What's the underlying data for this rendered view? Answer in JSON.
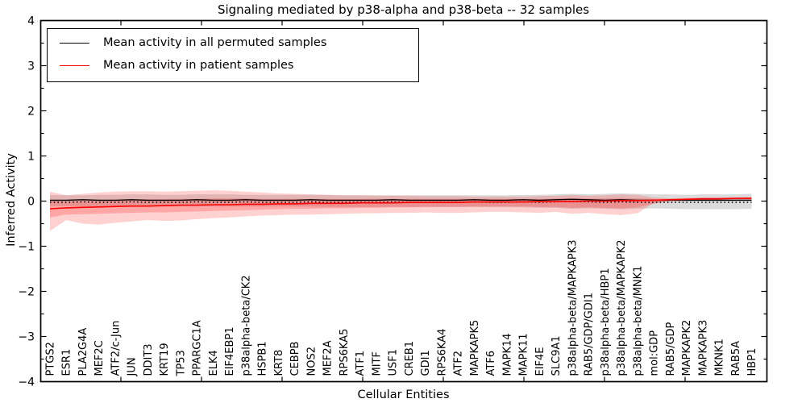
{
  "figure": {
    "title": "Signaling mediated by p38-alpha and p38-beta -- 32 samples",
    "xlabel": "Cellular Entities",
    "ylabel": "Inferred Activity"
  },
  "legend": {
    "position": "upper left",
    "items": [
      {
        "label": "Mean activity in all permuted samples",
        "color": "#000000"
      },
      {
        "label": "Mean activity in patient samples",
        "color": "#ff0000"
      }
    ]
  },
  "chart_data": {
    "type": "line",
    "title": "Signaling mediated by p38-alpha and p38-beta -- 32 samples",
    "xlabel": "Cellular Entities",
    "ylabel": "Inferred Activity",
    "ylim": [
      -4,
      4
    ],
    "grid": false,
    "legend_position": "upper left",
    "yticks": [
      4,
      3,
      2,
      1,
      0,
      -1,
      -2,
      -3,
      -4
    ],
    "ytick_labels": [
      "4",
      "3",
      "2",
      "1",
      "0",
      "−1",
      "−2",
      "−3",
      "−4"
    ],
    "categories": [
      "PTGS2",
      "ESR1",
      "PLA2G4A",
      "MEF2C",
      "ATF2/c-Jun",
      "JUN",
      "DDIT3",
      "KRT19",
      "TP53",
      "PPARGC1A",
      "ELK4",
      "EIF4EBP1",
      "p38alpha-beta/CK2",
      "HSPB1",
      "KRT8",
      "CEBPB",
      "NOS2",
      "MEF2A",
      "RPS6KA5",
      "ATF1",
      "MITF",
      "USF1",
      "CREB1",
      "GDI1",
      "RPS6KA4",
      "ATF2",
      "MAPKAPK5",
      "ATF6",
      "MAPK14",
      "MAPK11",
      "EIF4E",
      "SLC9A1",
      "p38alpha-beta/MAPKAPK3",
      "RAB5/GDP/GDI1",
      "p38alpha-beta/HBP1",
      "p38alpha-beta/MAPKAPK2",
      "p38alpha-beta/MNK1",
      "mol:GDP",
      "RAB5/GDP",
      "MAPKAPK2",
      "MAPKAPK3",
      "MKNK1",
      "RAB5A",
      "HBP1"
    ],
    "series": [
      {
        "name": "Mean activity in all permuted samples",
        "color": "#000000",
        "style": "solid-with-tick-markers",
        "values": [
          0.02,
          0.02,
          0.03,
          0.02,
          0.02,
          0.03,
          0.02,
          0.02,
          0.02,
          0.03,
          0.02,
          0.02,
          0.03,
          0.02,
          0.02,
          0.02,
          0.03,
          0.02,
          0.02,
          0.02,
          0.02,
          0.03,
          0.02,
          0.02,
          0.02,
          0.02,
          0.03,
          0.02,
          0.02,
          0.03,
          0.02,
          0.03,
          0.04,
          0.03,
          0.02,
          0.03,
          0.02,
          0.02,
          0.02,
          0.02,
          0.02,
          0.02,
          0.02,
          0.02
        ]
      },
      {
        "name": "Mean activity in patient samples",
        "color": "#ff0000",
        "style": "solid",
        "values": [
          -0.17,
          -0.15,
          -0.14,
          -0.13,
          -0.12,
          -0.11,
          -0.11,
          -0.1,
          -0.09,
          -0.09,
          -0.08,
          -0.08,
          -0.07,
          -0.07,
          -0.06,
          -0.06,
          -0.05,
          -0.05,
          -0.05,
          -0.04,
          -0.04,
          -0.04,
          -0.03,
          -0.03,
          -0.03,
          -0.03,
          -0.02,
          -0.02,
          -0.02,
          -0.02,
          -0.01,
          -0.01,
          -0.01,
          0.0,
          0.0,
          0.01,
          0.01,
          0.02,
          0.03,
          0.04,
          0.05,
          0.05,
          0.06,
          0.06
        ]
      }
    ],
    "bands": [
      {
        "name": "permuted-range",
        "color": "rgba(125,125,125,0.28)",
        "upper": [
          0.14,
          0.13,
          0.13,
          0.14,
          0.14,
          0.15,
          0.15,
          0.14,
          0.14,
          0.15,
          0.15,
          0.15,
          0.14,
          0.14,
          0.14,
          0.14,
          0.14,
          0.14,
          0.13,
          0.13,
          0.13,
          0.13,
          0.13,
          0.13,
          0.13,
          0.13,
          0.13,
          0.13,
          0.13,
          0.14,
          0.14,
          0.15,
          0.16,
          0.15,
          0.16,
          0.17,
          0.16,
          0.15,
          0.15,
          0.14,
          0.15,
          0.15,
          0.15,
          0.16
        ],
        "lower": [
          -0.11,
          -0.11,
          -0.12,
          -0.12,
          -0.12,
          -0.12,
          -0.12,
          -0.12,
          -0.12,
          -0.12,
          -0.12,
          -0.12,
          -0.12,
          -0.12,
          -0.12,
          -0.12,
          -0.12,
          -0.13,
          -0.13,
          -0.13,
          -0.13,
          -0.13,
          -0.13,
          -0.13,
          -0.13,
          -0.13,
          -0.13,
          -0.14,
          -0.14,
          -0.14,
          -0.15,
          -0.15,
          -0.17,
          -0.16,
          -0.17,
          -0.18,
          -0.17,
          -0.16,
          -0.17,
          -0.18,
          -0.18,
          -0.18,
          -0.18,
          -0.17
        ]
      },
      {
        "name": "patient-range-outer",
        "color": "rgba(255,45,45,0.22)",
        "upper": [
          0.21,
          0.13,
          0.16,
          0.19,
          0.21,
          0.22,
          0.22,
          0.21,
          0.22,
          0.23,
          0.24,
          0.23,
          0.21,
          0.19,
          0.17,
          0.16,
          0.15,
          0.14,
          0.13,
          0.13,
          0.12,
          0.12,
          0.12,
          0.11,
          0.11,
          0.11,
          0.1,
          0.1,
          0.1,
          0.1,
          0.11,
          0.12,
          0.14,
          0.12,
          0.13,
          0.15,
          0.14,
          0.08,
          0.06,
          0.07,
          0.08,
          0.08,
          0.08,
          0.09
        ],
        "lower": [
          -0.66,
          -0.42,
          -0.5,
          -0.52,
          -0.48,
          -0.45,
          -0.42,
          -0.44,
          -0.43,
          -0.4,
          -0.38,
          -0.36,
          -0.34,
          -0.32,
          -0.31,
          -0.3,
          -0.3,
          -0.29,
          -0.28,
          -0.27,
          -0.27,
          -0.26,
          -0.26,
          -0.25,
          -0.26,
          -0.26,
          -0.25,
          -0.24,
          -0.24,
          -0.25,
          -0.26,
          -0.24,
          -0.28,
          -0.26,
          -0.29,
          -0.31,
          -0.27,
          -0.04,
          0.01,
          0.02,
          0.03,
          0.03,
          0.04,
          0.04
        ]
      },
      {
        "name": "patient-range-inner",
        "color": "rgba(255,45,45,0.26)",
        "upper": [
          0.02,
          0.0,
          0.01,
          0.02,
          0.03,
          0.04,
          0.04,
          0.04,
          0.05,
          0.05,
          0.06,
          0.06,
          0.06,
          0.05,
          0.05,
          0.05,
          0.05,
          0.05,
          0.05,
          0.05,
          0.05,
          0.05,
          0.05,
          0.05,
          0.05,
          0.05,
          0.05,
          0.05,
          0.05,
          0.05,
          0.05,
          0.06,
          0.07,
          0.06,
          0.06,
          0.07,
          0.06,
          0.05,
          0.05,
          0.06,
          0.07,
          0.07,
          0.07,
          0.08
        ],
        "lower": [
          -0.36,
          -0.3,
          -0.29,
          -0.28,
          -0.27,
          -0.26,
          -0.25,
          -0.25,
          -0.24,
          -0.23,
          -0.22,
          -0.21,
          -0.2,
          -0.19,
          -0.18,
          -0.17,
          -0.17,
          -0.16,
          -0.16,
          -0.15,
          -0.15,
          -0.14,
          -0.14,
          -0.13,
          -0.13,
          -0.13,
          -0.12,
          -0.12,
          -0.12,
          -0.12,
          -0.13,
          -0.13,
          -0.15,
          -0.14,
          -0.15,
          -0.16,
          -0.14,
          -0.06,
          0.0,
          0.01,
          0.02,
          0.02,
          0.03,
          0.03
        ]
      }
    ]
  }
}
